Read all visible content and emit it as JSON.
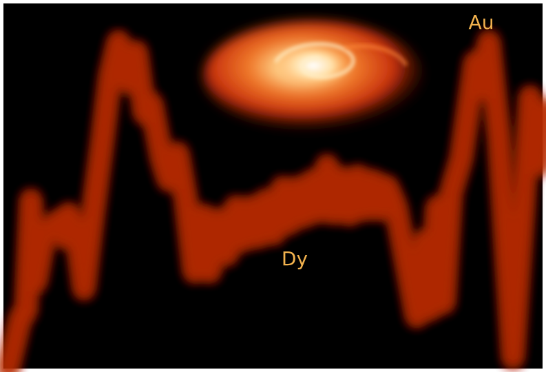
{
  "labels": {
    "heavy": "Au",
    "middle": "Dy"
  }
}
